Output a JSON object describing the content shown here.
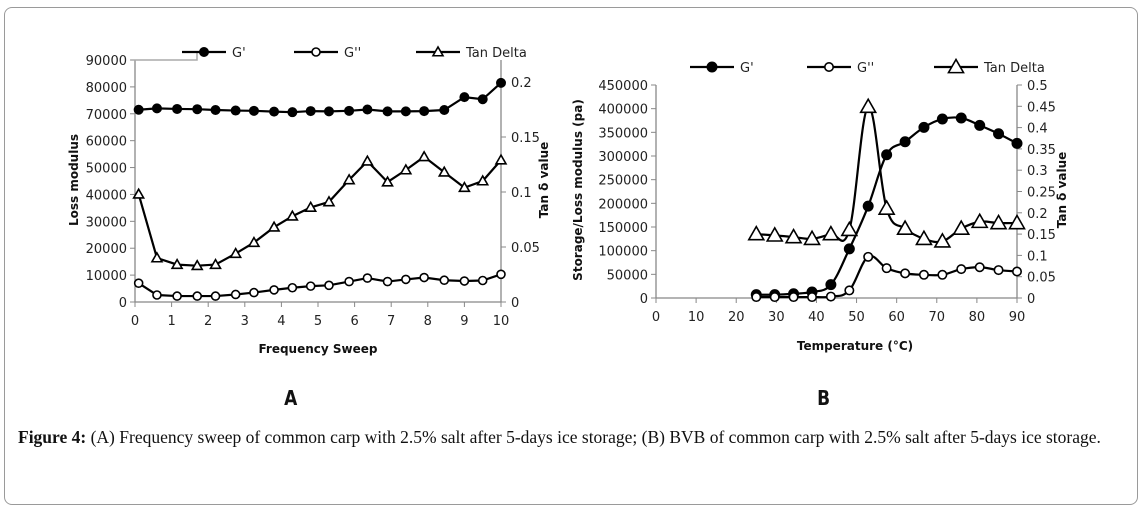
{
  "figure": {
    "panel_a_label": "A",
    "panel_b_label": "B",
    "caption_lead": "Figure 4:",
    "caption_text": " (A) Frequency sweep of common carp with 2.5% salt after 5-days ice storage; (B) BVB of common carp with 2.5% salt after 5-days ice storage."
  },
  "chart_data": [
    {
      "type": "line",
      "id": "A",
      "title": "",
      "xlabel": "Frequency Sweep",
      "ylabel": "Loss modulus",
      "y2label": "Tan δ value",
      "xlim": [
        0,
        10
      ],
      "ylim": [
        0,
        90000
      ],
      "y2lim": [
        0,
        0.22
      ],
      "xticks": [
        0,
        1,
        2,
        3,
        4,
        5,
        6,
        7,
        8,
        9,
        10
      ],
      "yticks": [
        0,
        10000,
        20000,
        30000,
        40000,
        50000,
        60000,
        70000,
        80000,
        90000
      ],
      "y2ticks": [
        0,
        0.05,
        0.1,
        0.15,
        0.2
      ],
      "legend": [
        "G'",
        "G''",
        "Tan Delta"
      ],
      "legend_position": "top",
      "grid": false,
      "x": [
        0.1,
        0.6,
        1.15,
        1.7,
        2.2,
        2.75,
        3.25,
        3.8,
        4.3,
        4.8,
        5.3,
        5.85,
        6.35,
        6.9,
        7.4,
        7.9,
        8.45,
        9.0,
        9.5,
        10.0
      ],
      "series": [
        {
          "name": "G'",
          "axis": "left",
          "marker": "filled-circle",
          "values": [
            71500,
            72000,
            71800,
            71700,
            71400,
            71200,
            71100,
            70800,
            70600,
            71000,
            70900,
            71100,
            71600,
            70900,
            70900,
            71000,
            71400,
            76200,
            75400,
            81500
          ]
        },
        {
          "name": "G''",
          "axis": "left",
          "marker": "open-circle",
          "values": [
            7000,
            2600,
            2200,
            2200,
            2200,
            2800,
            3500,
            4500,
            5300,
            5900,
            6200,
            7600,
            8900,
            7600,
            8400,
            9100,
            8100,
            7800,
            8000,
            10300
          ]
        },
        {
          "name": "Tan Delta",
          "axis": "right",
          "marker": "open-triangle",
          "values": [
            0.098,
            0.04,
            0.034,
            0.033,
            0.034,
            0.044,
            0.054,
            0.068,
            0.078,
            0.086,
            0.091,
            0.111,
            0.128,
            0.109,
            0.12,
            0.132,
            0.118,
            0.104,
            0.11,
            0.129
          ]
        }
      ]
    },
    {
      "type": "line",
      "id": "B",
      "title": "",
      "xlabel": "Temperature (°C)",
      "ylabel": "Storage/Loss modulus (pa)",
      "y2label": "Tan δ value",
      "xlim": [
        0,
        90
      ],
      "ylim": [
        0,
        450000
      ],
      "y2lim": [
        0,
        0.5
      ],
      "xticks": [
        0,
        10,
        20,
        30,
        40,
        50,
        60,
        70,
        80,
        90
      ],
      "yticks": [
        0,
        50000,
        100000,
        150000,
        200000,
        250000,
        300000,
        350000,
        400000,
        450000
      ],
      "y2ticks": [
        0,
        0.05,
        0.1,
        0.15,
        0.2,
        0.25,
        0.3,
        0.35,
        0.4,
        0.45,
        0.5
      ],
      "legend": [
        "G'",
        "G''",
        "Tan Delta"
      ],
      "legend_position": "top",
      "grid": false,
      "x": [
        25,
        29.6,
        34.3,
        38.9,
        43.6,
        48.2,
        52.9,
        57.5,
        62.1,
        66.8,
        71.4,
        76.1,
        80.7,
        85.4,
        90
      ],
      "series": [
        {
          "name": "G'",
          "axis": "left",
          "marker": "filled-circle",
          "values": [
            7000,
            7000,
            9000,
            12700,
            28200,
            103700,
            194000,
            302700,
            330200,
            360500,
            378200,
            380300,
            364800,
            347100,
            326700
          ]
        },
        {
          "name": "G''",
          "axis": "left",
          "marker": "open-circle",
          "values": [
            2000,
            2000,
            2000,
            2000,
            3000,
            16000,
            87000,
            63000,
            52000,
            49000,
            49000,
            61000,
            65000,
            59000,
            56000
          ]
        },
        {
          "name": "Tan Delta",
          "axis": "right",
          "marker": "open-triangle",
          "values": [
            0.15,
            0.147,
            0.143,
            0.139,
            0.15,
            0.16,
            0.449,
            0.21,
            0.163,
            0.139,
            0.133,
            0.163,
            0.179,
            0.176,
            0.176
          ]
        }
      ]
    }
  ]
}
